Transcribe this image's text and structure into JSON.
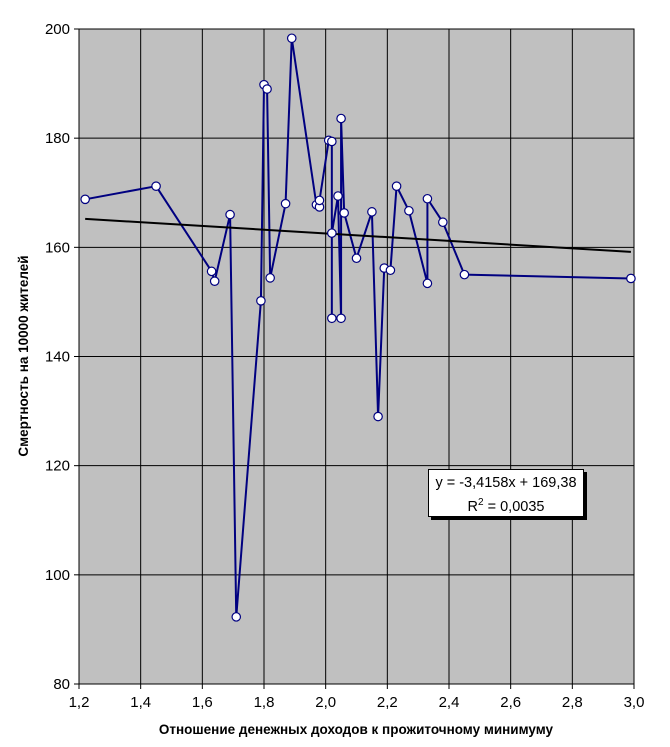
{
  "chart_data": {
    "type": "scatter",
    "xlabel": "Отношение денежных доходов к прожиточному минимуму",
    "ylabel": "Смертность на 10000 жителей",
    "xlim": [
      1.2,
      3.0
    ],
    "ylim": [
      80,
      200
    ],
    "x_ticks": [
      1.2,
      1.4,
      1.6,
      1.8,
      2.0,
      2.2,
      2.4,
      2.6,
      2.8,
      3.0
    ],
    "y_ticks": [
      80,
      100,
      120,
      140,
      160,
      180,
      200
    ],
    "x_tick_labels": [
      "1,2",
      "1,4",
      "1,6",
      "1,8",
      "2,0",
      "2,2",
      "2,4",
      "2,6",
      "2,8",
      "3,0"
    ],
    "y_tick_labels": [
      "80",
      "100",
      "120",
      "140",
      "160",
      "180",
      "200"
    ],
    "grid": true,
    "plot_background": "#c0c0c0",
    "series": [
      {
        "color": "#000080",
        "marker": "circle",
        "connected": true,
        "points": [
          [
            1.22,
            168.8
          ],
          [
            1.45,
            171.2
          ],
          [
            1.63,
            155.6
          ],
          [
            1.64,
            153.8
          ],
          [
            1.69,
            166.0
          ],
          [
            1.71,
            92.3
          ],
          [
            1.79,
            150.2
          ],
          [
            1.8,
            189.8
          ],
          [
            1.81,
            189.0
          ],
          [
            1.82,
            154.4
          ],
          [
            1.87,
            168.0
          ],
          [
            1.89,
            198.3
          ],
          [
            1.97,
            167.8
          ],
          [
            1.98,
            167.4
          ],
          [
            1.98,
            168.6
          ],
          [
            2.01,
            179.6
          ],
          [
            2.02,
            179.4
          ],
          [
            2.02,
            147.0
          ],
          [
            2.02,
            162.6
          ],
          [
            2.04,
            169.4
          ],
          [
            2.05,
            147.0
          ],
          [
            2.05,
            183.6
          ],
          [
            2.06,
            166.3
          ],
          [
            2.1,
            158.0
          ],
          [
            2.15,
            166.5
          ],
          [
            2.17,
            129.0
          ],
          [
            2.19,
            156.2
          ],
          [
            2.21,
            155.8
          ],
          [
            2.23,
            171.2
          ],
          [
            2.27,
            166.7
          ],
          [
            2.33,
            153.4
          ],
          [
            2.33,
            168.9
          ],
          [
            2.38,
            164.6
          ],
          [
            2.45,
            155.0
          ],
          [
            2.99,
            154.3
          ]
        ]
      }
    ],
    "trendline": {
      "type": "linear",
      "slope": -3.4158,
      "intercept": 169.38,
      "color": "#000000",
      "x_range": [
        1.22,
        2.99
      ],
      "equation_text": "y = -3,4158x + 169,38",
      "r2_label": "R",
      "r2_exp": "2",
      "r2_value_text": " = 0,0035"
    }
  }
}
